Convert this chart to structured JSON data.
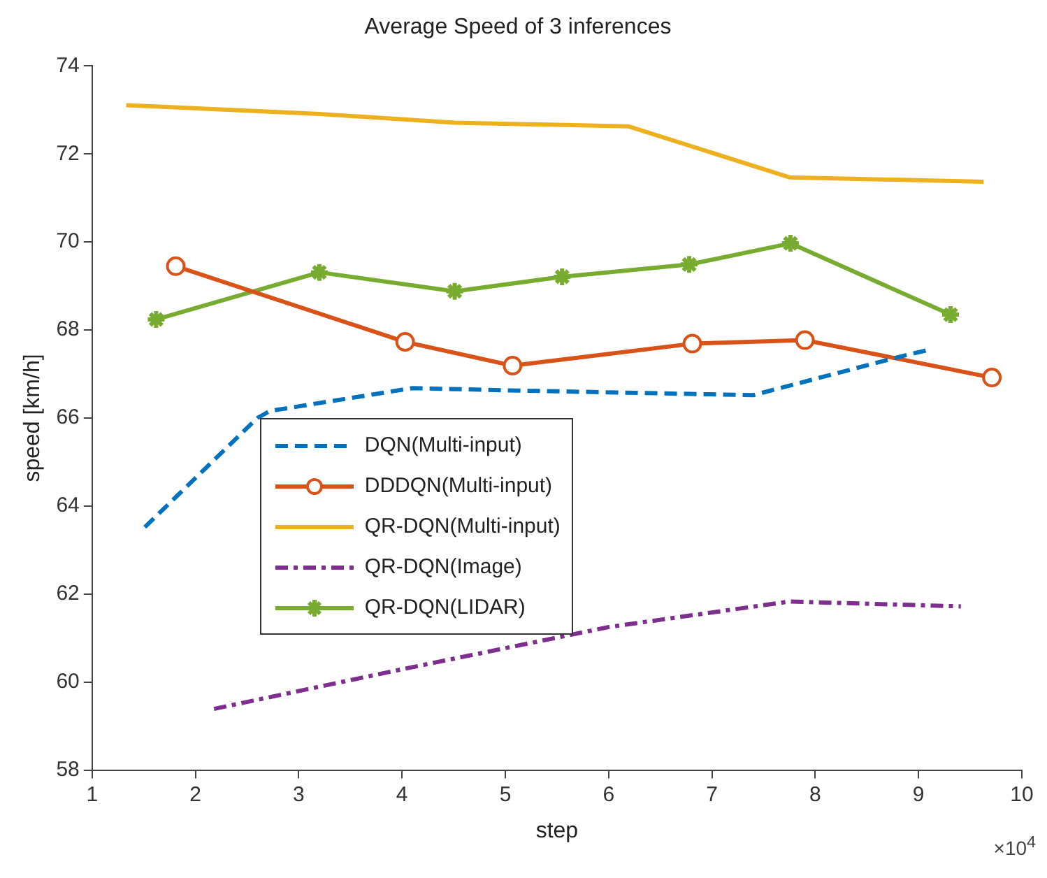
{
  "chart_data": {
    "type": "line",
    "title": "Average Speed of 3 inferences",
    "xlabel": "step",
    "ylabel": "speed [km/h]",
    "xlim": [
      1,
      10
    ],
    "xticks": [
      1,
      2,
      3,
      4,
      5,
      6,
      7,
      8,
      9,
      10
    ],
    "ylim": [
      58,
      74
    ],
    "yticks": [
      58,
      60,
      62,
      64,
      66,
      68,
      70,
      72,
      74
    ],
    "grid": false,
    "legend": "center left",
    "annotations": [
      "×10$^{4}$"
    ],
    "series": [
      {
        "name": "DQN(Multi-input)",
        "color": "#0072bd",
        "line_style": "dashed",
        "marker": "none",
        "x": [
          1.51,
          2.6,
          2.72,
          4.1,
          5.0,
          7.4,
          8.83,
          9.1
        ],
        "values": [
          63.52,
          66.0,
          66.16,
          66.68,
          66.63,
          66.52,
          67.4,
          67.55
        ]
      },
      {
        "name": "DDDQN(Multi-input)",
        "color": "#d95319",
        "line_style": "solid",
        "marker": "circle",
        "x": [
          1.81,
          4.03,
          5.07,
          6.81,
          7.9,
          9.71
        ],
        "values": [
          69.45,
          67.73,
          67.19,
          67.69,
          67.77,
          66.92
        ]
      },
      {
        "name": "QR-DQN(Multi-input)",
        "color": "#edb120",
        "line_style": "solid",
        "marker": "none",
        "x": [
          1.33,
          3.2,
          4.51,
          6.19,
          7.75,
          9.63
        ],
        "values": [
          73.11,
          72.91,
          72.71,
          72.63,
          71.47,
          71.37
        ]
      },
      {
        "name": "QR-DQN(Image)",
        "color": "#7e2f8e",
        "line_style": "dashdot",
        "marker": "none",
        "x": [
          2.18,
          4.0,
          6.0,
          7.75,
          9.41
        ],
        "values": [
          59.39,
          60.29,
          61.25,
          61.83,
          61.72
        ]
      },
      {
        "name": "QR-DQN(LIDAR)",
        "color": "#77ac30",
        "line_style": "solid",
        "marker": "cross",
        "x": [
          1.62,
          3.2,
          4.51,
          5.55,
          6.78,
          7.76,
          9.31
        ],
        "values": [
          68.24,
          69.31,
          68.88,
          69.21,
          69.49,
          69.97,
          68.35
        ]
      }
    ]
  }
}
